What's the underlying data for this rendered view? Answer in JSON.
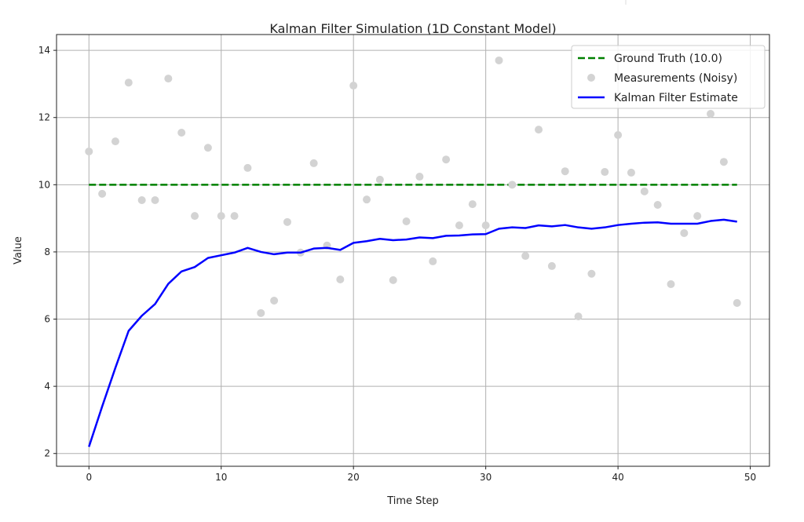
{
  "chart_data": {
    "type": "line",
    "title": "Kalman Filter Simulation (1D Constant Model)",
    "xlabel": "Time Step",
    "ylabel": "Value",
    "xlim": [
      -2.45,
      51.45
    ],
    "ylim": [
      1.62,
      14.47
    ],
    "xticks": [
      0,
      10,
      20,
      30,
      40,
      50
    ],
    "yticks": [
      2,
      4,
      6,
      8,
      10,
      12,
      14
    ],
    "grid": true,
    "legend_position": "top-right",
    "x": [
      0,
      1,
      2,
      3,
      4,
      5,
      6,
      7,
      8,
      9,
      10,
      11,
      12,
      13,
      14,
      15,
      16,
      17,
      18,
      19,
      20,
      21,
      22,
      23,
      24,
      25,
      26,
      27,
      28,
      29,
      30,
      31,
      32,
      33,
      34,
      35,
      36,
      37,
      38,
      39,
      40,
      41,
      42,
      43,
      44,
      45,
      46,
      47,
      48,
      49
    ],
    "series": [
      {
        "name": "Ground Truth (10.0)",
        "style": "dashed",
        "color": "#008000",
        "values": [
          10,
          10,
          10,
          10,
          10,
          10,
          10,
          10,
          10,
          10,
          10,
          10,
          10,
          10,
          10,
          10,
          10,
          10,
          10,
          10,
          10,
          10,
          10,
          10,
          10,
          10,
          10,
          10,
          10,
          10,
          10,
          10,
          10,
          10,
          10,
          10,
          10,
          10,
          10,
          10,
          10,
          10,
          10,
          10,
          10,
          10,
          10,
          10,
          10,
          10
        ]
      },
      {
        "name": "Measurements (Noisy)",
        "style": "markers",
        "color": "#d3d3d3",
        "values": [
          10.99,
          9.73,
          11.29,
          13.04,
          9.54,
          9.54,
          13.16,
          11.55,
          9.07,
          11.1,
          9.07,
          9.07,
          10.5,
          6.18,
          6.55,
          8.89,
          7.98,
          10.64,
          8.19,
          7.18,
          12.95,
          9.56,
          10.15,
          7.16,
          8.91,
          10.24,
          7.72,
          10.75,
          8.79,
          9.42,
          8.79,
          13.7,
          10.0,
          7.88,
          11.64,
          7.58,
          10.4,
          6.08,
          7.35,
          10.38,
          11.48,
          10.36,
          9.8,
          9.4,
          7.04,
          8.56,
          9.07,
          12.11,
          10.68,
          6.48
        ]
      },
      {
        "name": "Kalman Filter Estimate",
        "style": "solid",
        "color": "#0000ff",
        "values": [
          2.2,
          3.4,
          4.55,
          5.65,
          6.1,
          6.45,
          7.05,
          7.42,
          7.55,
          7.82,
          7.9,
          7.98,
          8.12,
          8.0,
          7.93,
          7.98,
          7.98,
          8.1,
          8.12,
          8.06,
          8.27,
          8.32,
          8.39,
          8.35,
          8.37,
          8.43,
          8.41,
          8.48,
          8.49,
          8.52,
          8.53,
          8.69,
          8.73,
          8.71,
          8.79,
          8.76,
          8.8,
          8.73,
          8.69,
          8.73,
          8.8,
          8.84,
          8.87,
          8.88,
          8.84,
          8.84,
          8.84,
          8.92,
          8.96,
          8.9
        ]
      }
    ]
  }
}
